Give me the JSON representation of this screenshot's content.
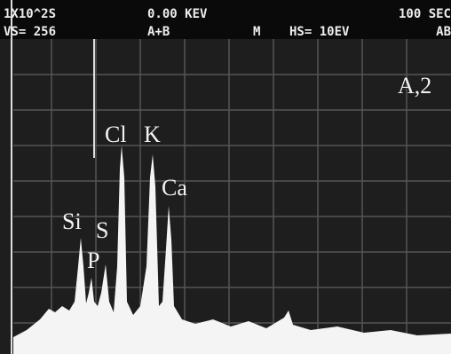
{
  "status": {
    "line1": {
      "scale": "1X10^2S",
      "energy": "0.00 KEV",
      "time": "100 SEC"
    },
    "line2": {
      "vs": "VS= 256",
      "mode": "A+B",
      "m": "M",
      "hs": "HS= 10EV",
      "ab": "AB"
    }
  },
  "sample_label": "A,2",
  "peaks": {
    "si": "Si",
    "s": "S",
    "p": "P",
    "cl": "Cl",
    "k": "K",
    "ca": "Ca"
  }
}
